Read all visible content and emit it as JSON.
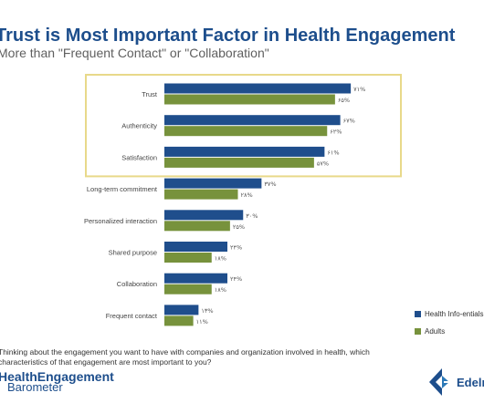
{
  "title": "Trust is Most Important Factor in Health Engagement",
  "subtitle": "More than \"Frequent Contact\" or \"Collaboration\"",
  "question": "Thinking about the engagement you want to have with companies and organization involved in health, which characteristics of that engagement are most important to you?",
  "logo": {
    "line1": "HealthEngagement",
    "line2": "Barometer"
  },
  "brand": {
    "name": "Edelman"
  },
  "colors": {
    "health_info": "#1f4e8c",
    "adults": "#77923c",
    "highlight_border": "#e8d98a"
  },
  "chart_data": {
    "type": "bar",
    "orientation": "horizontal",
    "categories": [
      "Trust",
      "Authenticity",
      "Satisfaction",
      "Long-term commitment",
      "Personalized interaction",
      "Shared purpose",
      "Collaboration",
      "Frequent contact"
    ],
    "series": [
      {
        "name": "Health Info-entials",
        "values": [
          71,
          67,
          61,
          37,
          30,
          24,
          24,
          13
        ],
        "labels": [
          "۷۱%",
          "۶۷%",
          "۶۱%",
          "۳۷%",
          "۳۰%",
          "۲۴%",
          "۲۴%",
          "۱۳%"
        ]
      },
      {
        "name": "Adults",
        "values": [
          65,
          62,
          57,
          28,
          25,
          18,
          18,
          11
        ],
        "labels": [
          "۶۵%",
          "۶۲%",
          "۵۷%",
          "۲۸%",
          "۲۵%",
          "۱۸%",
          "۱۸%",
          "۱۱%"
        ]
      }
    ],
    "xlim": [
      0,
      80
    ],
    "highlighted_categories": [
      "Trust",
      "Authenticity",
      "Satisfaction"
    ]
  }
}
